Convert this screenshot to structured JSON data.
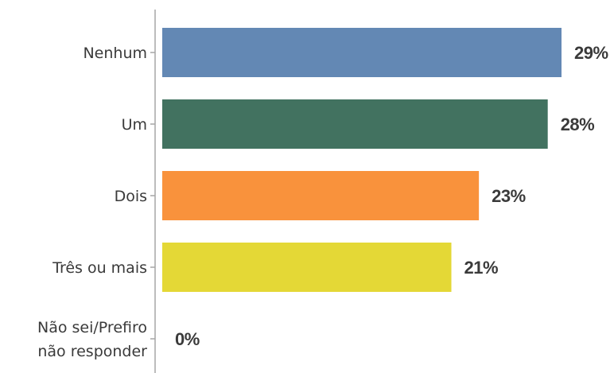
{
  "chart_data": {
    "type": "bar",
    "orientation": "horizontal",
    "categories": [
      "Nenhum",
      "Um",
      "Dois",
      "Três ou mais",
      "Não sei/Prefiro não responder"
    ],
    "category_lines": [
      [
        "Nenhum"
      ],
      [
        "Um"
      ],
      [
        "Dois"
      ],
      [
        "Três ou mais"
      ],
      [
        "Não sei/Prefiro",
        "não responder"
      ]
    ],
    "values": [
      29,
      28,
      23,
      21,
      0
    ],
    "value_labels": [
      "29%",
      "28%",
      "23%",
      "21%",
      "0%"
    ],
    "colors": [
      "#6388b4",
      "#427260",
      "#f9923c",
      "#e4d836",
      "#e4d836"
    ],
    "xlim": [
      0,
      29
    ],
    "grid": false,
    "legend": "none",
    "title": "",
    "xlabel": "",
    "ylabel": ""
  }
}
